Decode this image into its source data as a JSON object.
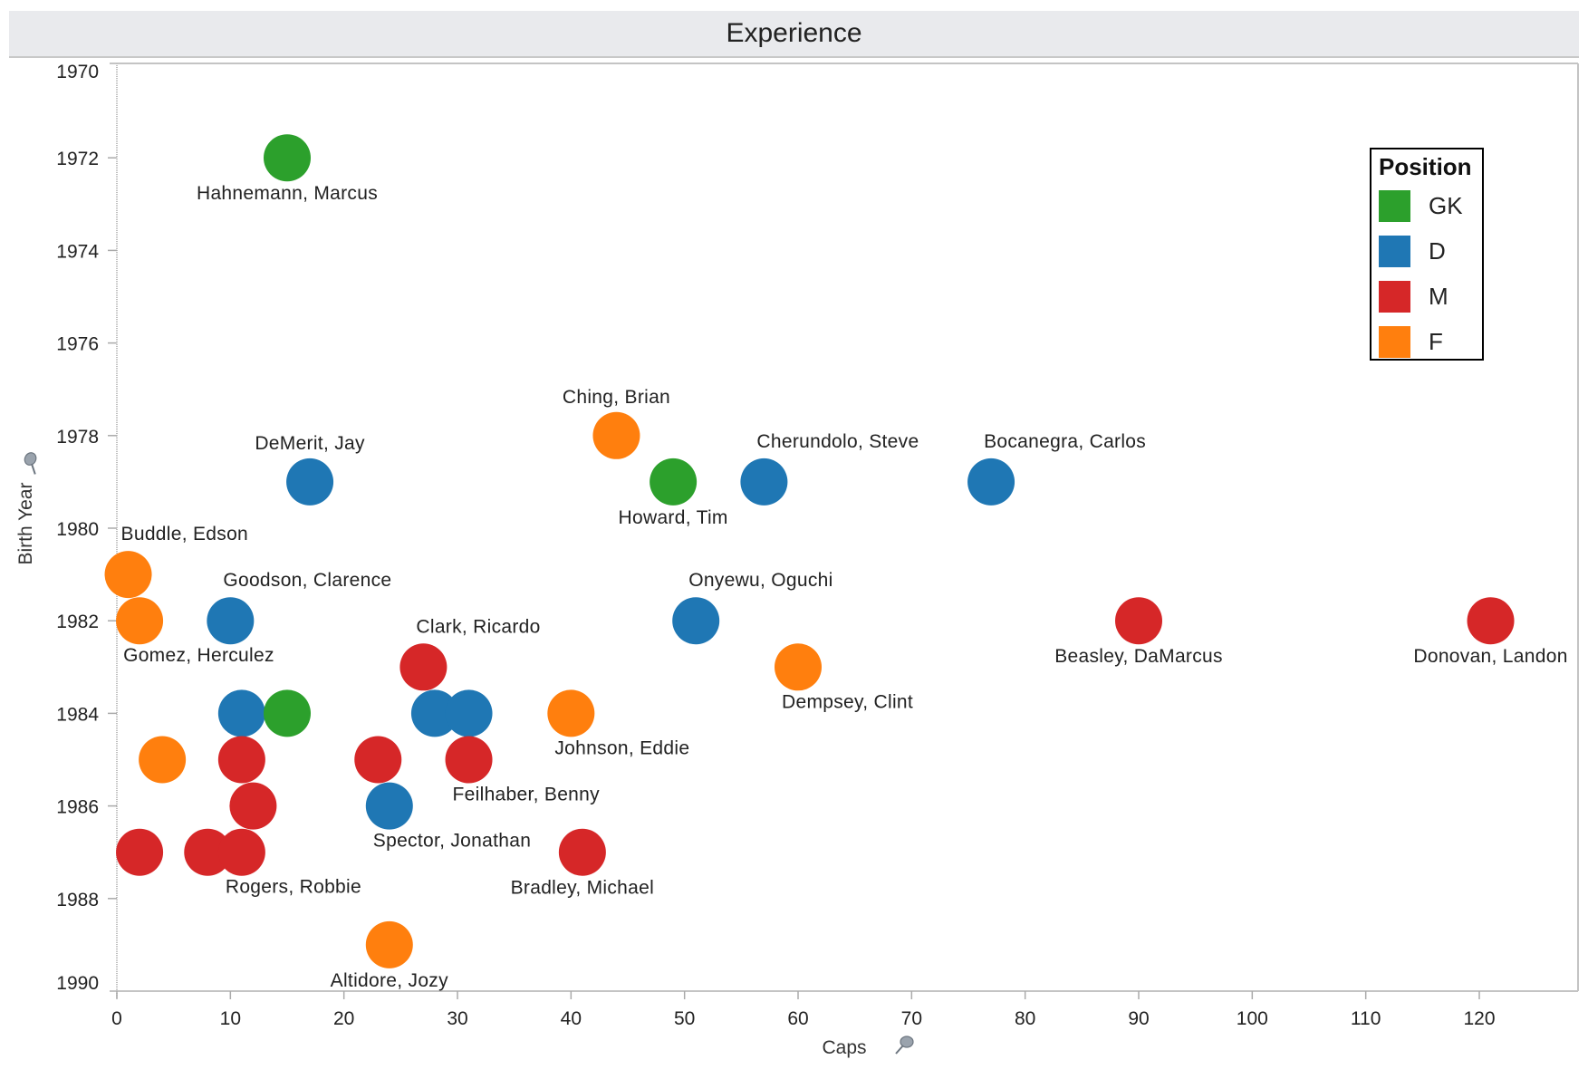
{
  "title": "Experience",
  "legend": {
    "title": "Position",
    "items": [
      {
        "key": "GK",
        "label": "GK",
        "color": "#2ca02c"
      },
      {
        "key": "D",
        "label": "D",
        "color": "#1f77b4"
      },
      {
        "key": "M",
        "label": "M",
        "color": "#d62728"
      },
      {
        "key": "F",
        "label": "F",
        "color": "#ff7f0e"
      }
    ]
  },
  "icons": {
    "x_axis_pin": "pin-icon",
    "y_axis_pin": "pin-icon"
  },
  "chart_data": {
    "type": "scatter",
    "title": "Experience",
    "xlabel": "Caps",
    "ylabel": "Birth Year",
    "xlim": [
      0,
      129
    ],
    "ylim": [
      1970,
      1990
    ],
    "y_inverted": true,
    "x_ticks": [
      0,
      10,
      20,
      30,
      40,
      50,
      60,
      70,
      80,
      90,
      100,
      110,
      120
    ],
    "y_ticks": [
      1970,
      1972,
      1974,
      1976,
      1978,
      1980,
      1982,
      1984,
      1986,
      1988,
      1990
    ],
    "grid": false,
    "legend_position": "top-right",
    "color_by": "Position",
    "points": [
      {
        "name": "Hahnemann, Marcus",
        "caps": 15,
        "birth_year": 1972,
        "position": "GK",
        "label": "Hahnemann, Marcus",
        "label_pos": "below"
      },
      {
        "name": "Ching, Brian",
        "caps": 44,
        "birth_year": 1978,
        "position": "F",
        "label": "Ching, Brian",
        "label_pos": "above"
      },
      {
        "name": "DeMerit, Jay",
        "caps": 17,
        "birth_year": 1979,
        "position": "D",
        "label": "DeMerit, Jay",
        "label_pos": "above"
      },
      {
        "name": "Howard, Tim",
        "caps": 49,
        "birth_year": 1979,
        "position": "GK",
        "label": "Howard, Tim",
        "label_pos": "below"
      },
      {
        "name": "Cherundolo, Steve",
        "caps": 57,
        "birth_year": 1979,
        "position": "D",
        "label": "Cherundolo, Steve",
        "label_pos": "above-right"
      },
      {
        "name": "Bocanegra, Carlos",
        "caps": 77,
        "birth_year": 1979,
        "position": "D",
        "label": "Bocanegra, Carlos",
        "label_pos": "above-right"
      },
      {
        "name": "Buddle, Edson",
        "caps": 1,
        "birth_year": 1981,
        "position": "F",
        "label": "Buddle, Edson",
        "label_pos": "above-right"
      },
      {
        "name": "Gomez, Herculez",
        "caps": 2,
        "birth_year": 1982,
        "position": "F",
        "label": "Gomez, Herculez",
        "label_pos": "below-right"
      },
      {
        "name": "Goodson, Clarence",
        "caps": 10,
        "birth_year": 1982,
        "position": "D",
        "label": "Goodson, Clarence",
        "label_pos": "above-right"
      },
      {
        "name": "Onyewu, Oguchi",
        "caps": 51,
        "birth_year": 1982,
        "position": "D",
        "label": "Onyewu, Oguchi",
        "label_pos": "above-right"
      },
      {
        "name": "Beasley, DaMarcus",
        "caps": 90,
        "birth_year": 1982,
        "position": "M",
        "label": "Beasley, DaMarcus",
        "label_pos": "below"
      },
      {
        "name": "Donovan, Landon",
        "caps": 121,
        "birth_year": 1982,
        "position": "M",
        "label": "Donovan, Landon",
        "label_pos": "below"
      },
      {
        "name": "Clark, Ricardo",
        "caps": 27,
        "birth_year": 1983,
        "position": "M",
        "label": "Clark, Ricardo",
        "label_pos": "above-right"
      },
      {
        "name": "Dempsey, Clint",
        "caps": 60,
        "birth_year": 1983,
        "position": "F",
        "label": "Dempsey, Clint",
        "label_pos": "below-right"
      },
      {
        "name": "D 1984 (11)",
        "caps": 11,
        "birth_year": 1984,
        "position": "D",
        "label": "",
        "label_pos": "none"
      },
      {
        "name": "GK 1984 (15)",
        "caps": 15,
        "birth_year": 1984,
        "position": "GK",
        "label": "",
        "label_pos": "none"
      },
      {
        "name": "D 1984 (28)",
        "caps": 28,
        "birth_year": 1984,
        "position": "D",
        "label": "",
        "label_pos": "none"
      },
      {
        "name": "D 1984 (31)",
        "caps": 31,
        "birth_year": 1984,
        "position": "D",
        "label": "",
        "label_pos": "none"
      },
      {
        "name": "Johnson, Eddie",
        "caps": 40,
        "birth_year": 1984,
        "position": "F",
        "label": "Johnson, Eddie",
        "label_pos": "below-right"
      },
      {
        "name": "F 1985 (4)",
        "caps": 4,
        "birth_year": 1985,
        "position": "F",
        "label": "",
        "label_pos": "none"
      },
      {
        "name": "M 1985 (11)",
        "caps": 11,
        "birth_year": 1985,
        "position": "M",
        "label": "",
        "label_pos": "none"
      },
      {
        "name": "M 1985 (23)",
        "caps": 23,
        "birth_year": 1985,
        "position": "M",
        "label": "",
        "label_pos": "none"
      },
      {
        "name": "Feilhaber, Benny",
        "caps": 31,
        "birth_year": 1985,
        "position": "M",
        "label": "Feilhaber, Benny",
        "label_pos": "below-right"
      },
      {
        "name": "M 1986 (12)",
        "caps": 12,
        "birth_year": 1986,
        "position": "M",
        "label": "",
        "label_pos": "none"
      },
      {
        "name": "Spector, Jonathan",
        "caps": 24,
        "birth_year": 1986,
        "position": "D",
        "label": "Spector, Jonathan",
        "label_pos": "below-right"
      },
      {
        "name": "M 1987 (2)",
        "caps": 2,
        "birth_year": 1987,
        "position": "M",
        "label": "",
        "label_pos": "none"
      },
      {
        "name": "M 1987 (8)",
        "caps": 8,
        "birth_year": 1987,
        "position": "M",
        "label": "",
        "label_pos": "none"
      },
      {
        "name": "Rogers, Robbie",
        "caps": 11,
        "birth_year": 1987,
        "position": "M",
        "label": "Rogers, Robbie",
        "label_pos": "below-right"
      },
      {
        "name": "Bradley, Michael",
        "caps": 41,
        "birth_year": 1987,
        "position": "M",
        "label": "Bradley, Michael",
        "label_pos": "below"
      },
      {
        "name": "Altidore, Jozy",
        "caps": 24,
        "birth_year": 1989,
        "position": "F",
        "label": "Altidore, Jozy",
        "label_pos": "below"
      }
    ]
  }
}
